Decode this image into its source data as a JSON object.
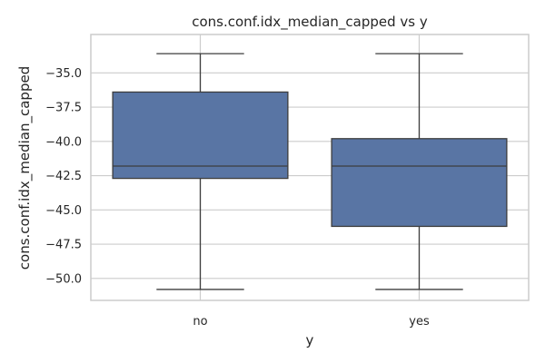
{
  "chart_data": {
    "type": "box",
    "title": "cons.conf.idx_median_capped vs y",
    "xlabel": "y",
    "ylabel": "cons.conf.idx_median_capped",
    "categories": [
      "no",
      "yes"
    ],
    "boxes": [
      {
        "category": "no",
        "whisker_low": -50.8,
        "q1": -42.7,
        "median": -41.8,
        "q3": -36.4,
        "whisker_high": -33.6
      },
      {
        "category": "yes",
        "whisker_low": -50.8,
        "q1": -46.2,
        "median": -41.8,
        "q3": -39.8,
        "whisker_high": -33.6
      }
    ],
    "ylim": [
      -51.6,
      -32.2
    ],
    "yticks": [
      -50.0,
      -47.5,
      -45.0,
      -42.5,
      -40.0,
      -37.5,
      -35.0
    ],
    "ytick_labels": [
      "−50.0",
      "−47.5",
      "−45.0",
      "−42.5",
      "−40.0",
      "−37.5",
      "−35.0"
    ],
    "grid": true,
    "box_color": "#5975a4",
    "line_color": "#3d3d3d"
  }
}
